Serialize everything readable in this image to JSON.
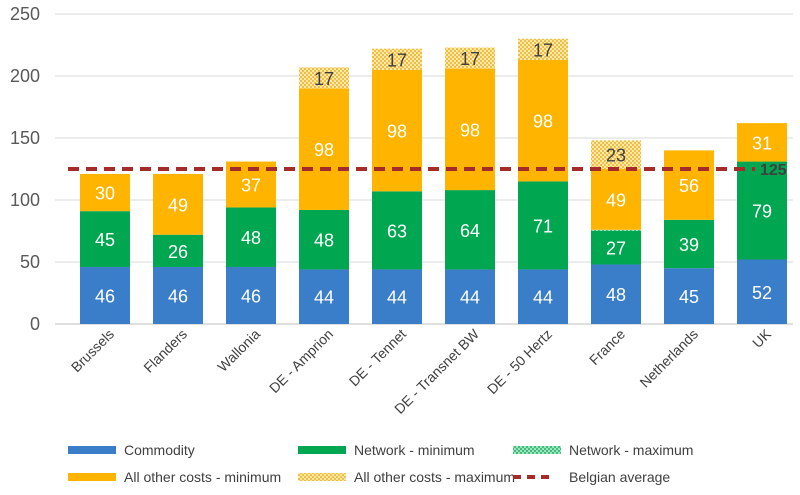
{
  "chart_data": {
    "type": "bar",
    "stacked": true,
    "categories": [
      "Brussels",
      "Flanders",
      "Wallonia",
      "DE - Amprion",
      "DE - Tennet",
      "DE - Transnet BW",
      "DE - 50 Hertz",
      "France",
      "Netherlands",
      "UK"
    ],
    "ylim": [
      0,
      250
    ],
    "yticks": [
      0,
      50,
      100,
      150,
      200,
      250
    ],
    "grid": true,
    "legend_position": "bottom",
    "series": [
      {
        "name": "Commodity",
        "style": "solid",
        "color": "#3A7DC9",
        "label_color": "#ffffff",
        "values": [
          46,
          46,
          46,
          44,
          44,
          44,
          44,
          48,
          45,
          52
        ]
      },
      {
        "name": "Network - minimum",
        "style": "solid",
        "color": "#00A650",
        "label_color": "#ffffff",
        "values": [
          45,
          26,
          48,
          48,
          63,
          64,
          71,
          27,
          39,
          79
        ]
      },
      {
        "name": "Network - maximum",
        "style": "dotted",
        "color": "#00A650",
        "label_color": "#ffffff",
        "values": [
          null,
          null,
          null,
          null,
          null,
          null,
          null,
          1,
          null,
          null
        ]
      },
      {
        "name": "All other costs - minimum",
        "style": "solid",
        "color": "#FFB400",
        "label_color": "#ffffff",
        "values": [
          30,
          49,
          37,
          98,
          98,
          98,
          98,
          49,
          56,
          31
        ]
      },
      {
        "name": "All other costs - maximum",
        "style": "dotted",
        "color": "#FFB400",
        "label_color": "#404040",
        "values": [
          null,
          null,
          null,
          17,
          17,
          17,
          17,
          23,
          null,
          null
        ]
      }
    ],
    "reference_line": {
      "name": "Belgian average",
      "value": 125,
      "label": "125",
      "color": "#A52A2A"
    }
  }
}
